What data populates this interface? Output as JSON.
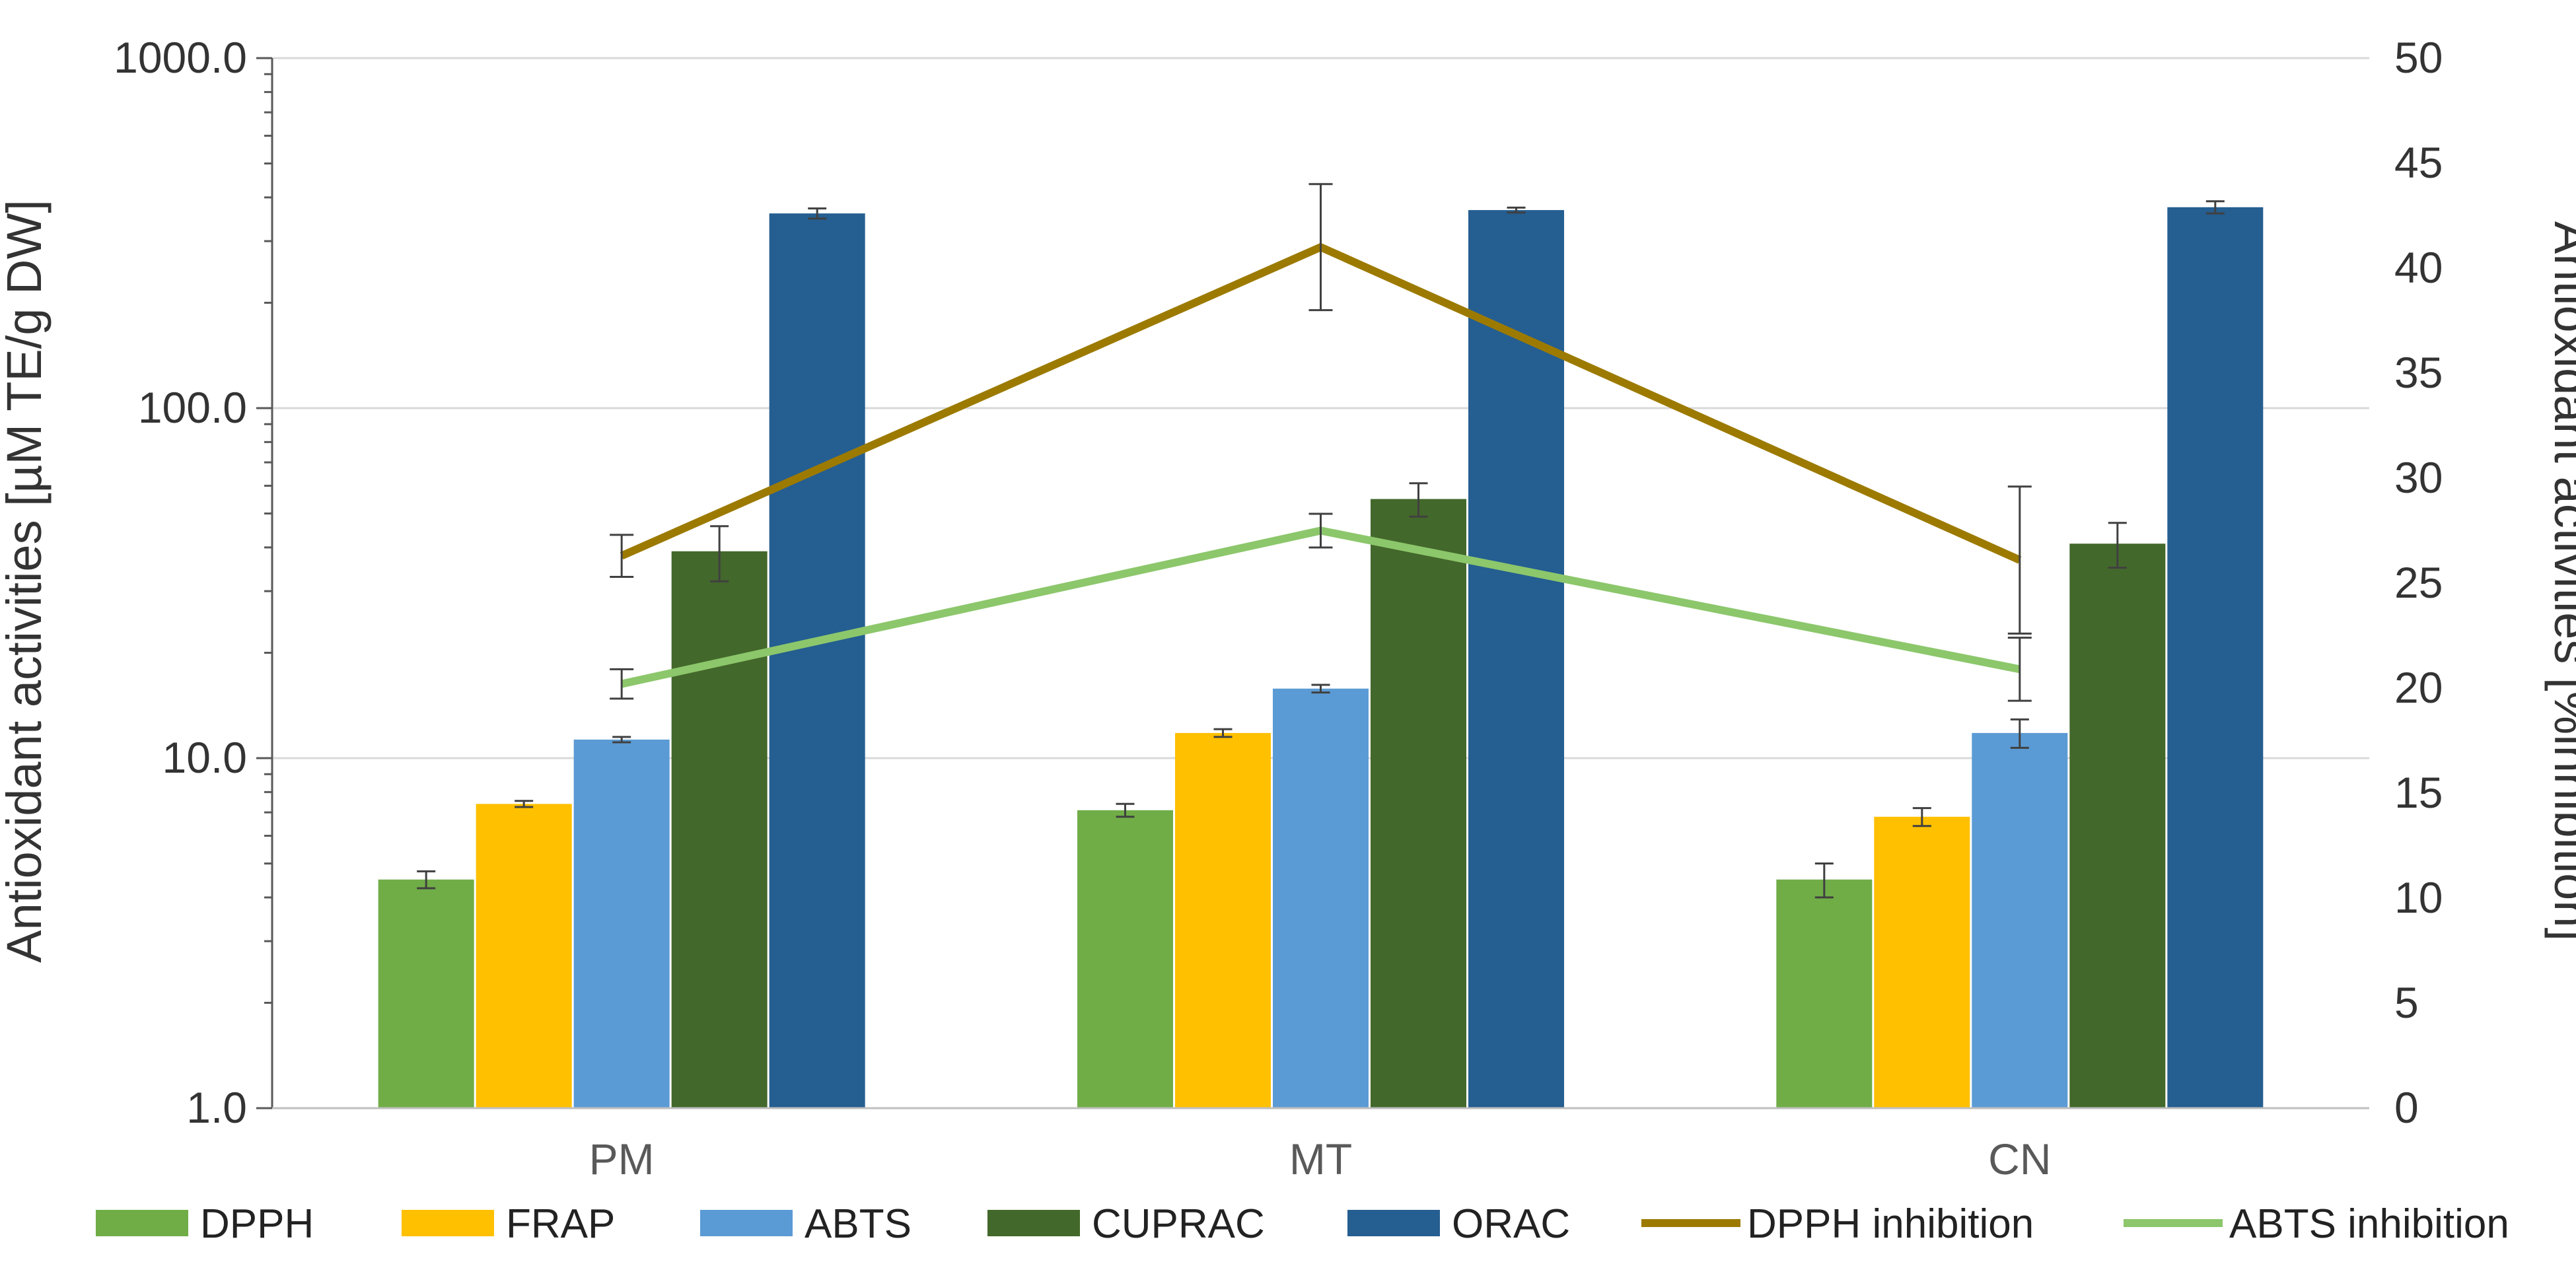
{
  "chart_data": {
    "type": "bar",
    "title": "",
    "categories": [
      "PM",
      "MT",
      "CN"
    ],
    "y_left": {
      "label": "Antioxidant activities [µM TE/g DW]",
      "scale": "log",
      "ylim": [
        1,
        1000
      ],
      "ticks": [
        1,
        10,
        100,
        1000
      ],
      "tick_labels": [
        "1.0",
        "10.0",
        "100.0",
        "1000.0"
      ]
    },
    "y_right": {
      "label": "Antioxidant activities [%inhibition]",
      "ylim": [
        0,
        50
      ],
      "ticks": [
        0,
        5,
        10,
        15,
        20,
        25,
        30,
        35,
        40,
        45,
        50
      ],
      "tick_labels": [
        "0",
        "5",
        "10",
        "15",
        "20",
        "25",
        "30",
        "35",
        "40",
        "45",
        "50"
      ]
    },
    "bar_series": [
      {
        "name": "DPPH",
        "color": "#70AD47",
        "values": [
          4.5,
          7.1,
          4.5
        ],
        "errors": [
          0.25,
          0.3,
          0.5
        ]
      },
      {
        "name": "FRAP",
        "color": "#FFC000",
        "values": [
          7.4,
          11.8,
          6.8
        ],
        "errors": [
          0.15,
          0.3,
          0.4
        ]
      },
      {
        "name": "ABTS",
        "color": "#5B9BD5",
        "values": [
          11.3,
          15.8,
          11.8
        ],
        "errors": [
          0.2,
          0.4,
          1.1
        ]
      },
      {
        "name": "CUPRAC",
        "color": "#43682B",
        "values": [
          39,
          55,
          41
        ],
        "errors": [
          7,
          6,
          6
        ]
      },
      {
        "name": "ORAC",
        "color": "#255E91",
        "values": [
          360,
          368,
          375
        ],
        "errors": [
          12,
          6,
          15
        ]
      }
    ],
    "line_series": [
      {
        "name": "DPPH inhibition",
        "color": "#9C7A00",
        "axis": "right",
        "values": [
          26.3,
          41.0,
          26.1
        ],
        "errors": [
          1.0,
          3.0,
          3.5
        ]
      },
      {
        "name": "ABTS inhibition",
        "color": "#8CC76B",
        "axis": "right",
        "values": [
          20.2,
          27.5,
          20.9
        ],
        "errors": [
          0.7,
          0.8,
          1.5
        ]
      }
    ],
    "grid": true,
    "legend": "bottom"
  }
}
